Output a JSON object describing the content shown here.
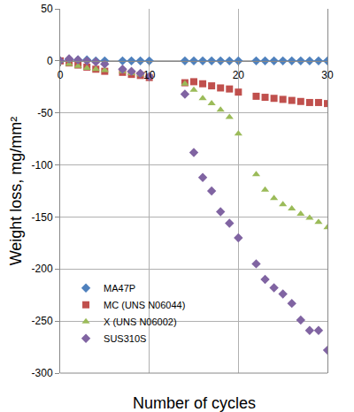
{
  "chart_data": {
    "type": "scatter",
    "x_label": "Number of cycles",
    "y_label": "Weight loss, mg/mm²",
    "x": [
      0,
      1,
      2,
      3,
      4,
      5,
      7,
      8,
      9,
      10,
      14,
      15,
      16,
      17,
      18,
      19,
      20,
      22,
      23,
      24,
      25,
      26,
      27,
      28,
      29,
      30
    ],
    "series": [
      {
        "name": "MA47P",
        "color": "#4f81bd",
        "marker": "diamond",
        "values": [
          0,
          1,
          1,
          1,
          0,
          0,
          0,
          0,
          0,
          0,
          0,
          0,
          0,
          0,
          0,
          0,
          0,
          0,
          0,
          0,
          0,
          0,
          0,
          0,
          0,
          0
        ]
      },
      {
        "name": "MC (UNS N06044)",
        "color": "#c0504d",
        "marker": "square",
        "values": [
          0,
          -2,
          -4,
          -6,
          -8,
          -10,
          -11,
          -13,
          -14,
          -16,
          -21,
          -20,
          -22,
          -24,
          -26,
          -27,
          -30,
          -34,
          -35,
          -36,
          -37,
          -38,
          -39,
          -40,
          -40,
          -41
        ]
      },
      {
        "name": "X (UNS N06002)",
        "color": "#9bbb59",
        "marker": "triangle-up",
        "values": [
          0,
          -3,
          -5,
          -7,
          -8,
          -9,
          -10,
          -12,
          -13,
          -14,
          -22,
          -28,
          -36,
          -41,
          -47,
          -54,
          -70,
          -109,
          -124,
          -132,
          -138,
          -142,
          -147,
          -151,
          -155,
          -160
        ]
      },
      {
        "name": "SUS310S",
        "color": "#8064a2",
        "marker": "diamond",
        "values": [
          0,
          2,
          1,
          0,
          -1,
          -3,
          -8,
          -10,
          -12,
          -15,
          -32,
          -88,
          -112,
          -125,
          -145,
          -156,
          -170,
          -195,
          -210,
          -218,
          -224,
          -233,
          -249,
          -259,
          -259,
          -278
        ]
      }
    ],
    "xlim": [
      0,
      30
    ],
    "xticks": [
      0,
      10,
      20,
      30
    ],
    "ylim": [
      -300,
      50
    ],
    "yticks": [
      -300,
      -250,
      -200,
      -150,
      -100,
      -50,
      0,
      50
    ],
    "grid": true,
    "legend": "lower left"
  }
}
